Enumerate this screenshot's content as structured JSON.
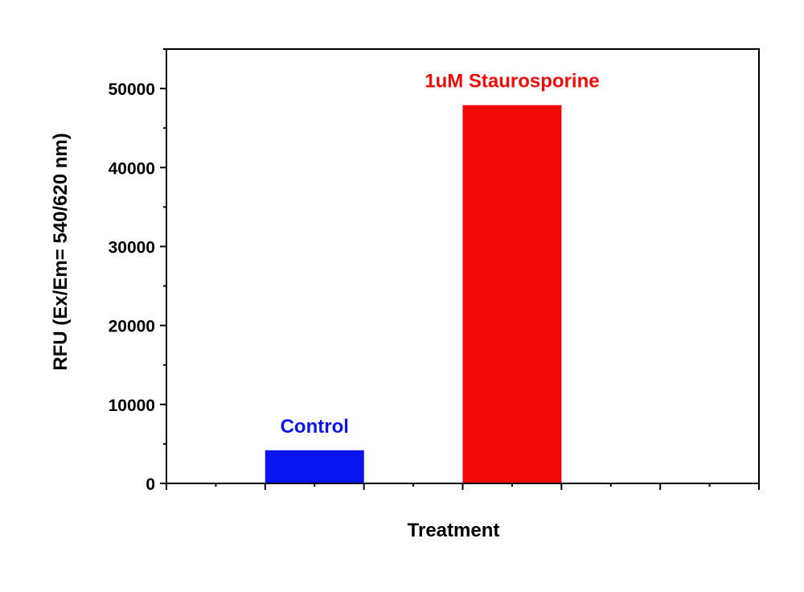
{
  "chart_data": {
    "type": "bar",
    "categories": [
      "Control",
      "1uM Staurosporine"
    ],
    "values": [
      4200,
      47900
    ],
    "colors": [
      "#0a14f0",
      "#f00a0a"
    ],
    "xlabel": "Treatment",
    "ylabel": "RFU (Ex/Em= 540/620 nm)",
    "ylim": [
      0,
      55000
    ],
    "yticks": [
      0,
      10000,
      20000,
      30000,
      40000,
      50000
    ],
    "ytick_labels": [
      "0",
      "10000",
      "20000",
      "30000",
      "40000",
      "50000"
    ],
    "x_category_positions": [
      4,
      8
    ],
    "xlim": [
      1,
      13
    ],
    "grid": false,
    "legend": "none"
  }
}
